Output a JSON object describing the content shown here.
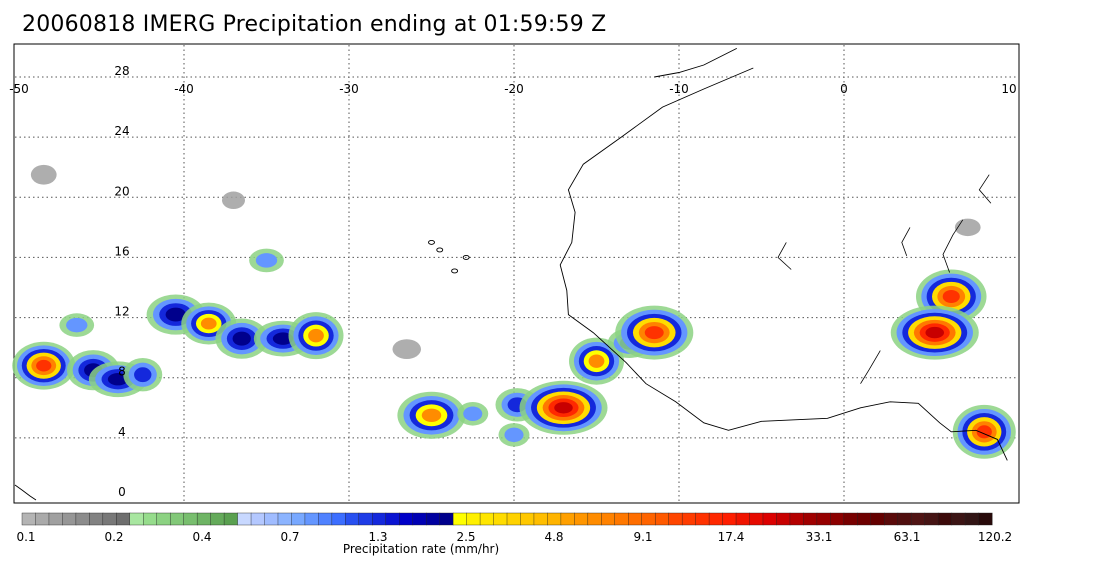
{
  "title": "20060818 IMERG Precipitation ending at 01:59:59 Z",
  "map": {
    "lon_range": [
      -50,
      10
    ],
    "lat_range": [
      -1,
      30
    ],
    "lon_ticks": [
      "-50",
      "-40",
      "-30",
      "-20",
      "-10",
      "0",
      "10"
    ],
    "lat_ticks": [
      "0",
      "4",
      "8",
      "12",
      "16",
      "20",
      "24",
      "28"
    ],
    "grid": true,
    "coastline_color": "#000000"
  },
  "legend": {
    "label": "Precipitation rate (mm/hr)",
    "tick_labels": [
      "0.1",
      "0.2",
      "0.4",
      "0.7",
      "1.3",
      "2.5",
      "4.8",
      "9.1",
      "17.4",
      "33.1",
      "63.1",
      "120.2"
    ],
    "colors": [
      "#b4b4b4",
      "#aaaaaa",
      "#a0a0a0",
      "#969696",
      "#8c8c8c",
      "#828282",
      "#787878",
      "#6e6e6e",
      "#a8e6a0",
      "#96dc8c",
      "#8cd282",
      "#82c878",
      "#78be6e",
      "#6eb464",
      "#64aa5a",
      "#5aa050",
      "#c8d8ff",
      "#b4c8ff",
      "#a0bcff",
      "#8cb4ff",
      "#78a8ff",
      "#6496ff",
      "#5082ff",
      "#3c6eff",
      "#2850f0",
      "#1e3ce6",
      "#1428dc",
      "#0a14d2",
      "#0000c8",
      "#0000b4",
      "#0000a0",
      "#00008c",
      "#ffff00",
      "#fff000",
      "#ffe600",
      "#ffdc00",
      "#ffd200",
      "#ffc800",
      "#ffbe00",
      "#ffb400",
      "#ffa000",
      "#ff9600",
      "#ff8c00",
      "#ff8200",
      "#ff7800",
      "#ff6e00",
      "#ff6400",
      "#ff5a00",
      "#ff4600",
      "#ff3c00",
      "#ff3200",
      "#ff2800",
      "#ff1e00",
      "#f01400",
      "#e60a00",
      "#dc0000",
      "#c80000",
      "#b40000",
      "#a00000",
      "#960000",
      "#8c0000",
      "#780000",
      "#6e0000",
      "#640000",
      "#5a0a0a",
      "#500f0f",
      "#501414",
      "#461414",
      "#3c0a0a",
      "#3c1414",
      "#321414",
      "#280a0a"
    ]
  },
  "precip_cells": [
    {
      "lon": -48.5,
      "lat": 8.8,
      "level": 5
    },
    {
      "lon": -45.5,
      "lat": 8.5,
      "level": 3
    },
    {
      "lon": -44.0,
      "lat": 7.9,
      "level": 3
    },
    {
      "lon": -42.5,
      "lat": 8.2,
      "level": 2
    },
    {
      "lon": -46.5,
      "lat": 11.5,
      "level": 1
    },
    {
      "lon": -40.5,
      "lat": 12.2,
      "level": 3
    },
    {
      "lon": -38.5,
      "lat": 11.6,
      "level": 4
    },
    {
      "lon": -36.5,
      "lat": 10.6,
      "level": 3
    },
    {
      "lon": -34.0,
      "lat": 10.6,
      "level": 3
    },
    {
      "lon": -32.0,
      "lat": 10.8,
      "level": 4
    },
    {
      "lon": -35.0,
      "lat": 15.8,
      "level": 1
    },
    {
      "lon": -25.0,
      "lat": 5.5,
      "level": 4
    },
    {
      "lon": -22.5,
      "lat": 5.6,
      "level": 1
    },
    {
      "lon": -19.8,
      "lat": 6.2,
      "level": 2
    },
    {
      "lon": -17.0,
      "lat": 6.0,
      "level": 6
    },
    {
      "lon": -15.0,
      "lat": 9.1,
      "level": 4
    },
    {
      "lon": -13.0,
      "lat": 10.3,
      "level": 2
    },
    {
      "lon": -11.5,
      "lat": 11.0,
      "level": 5
    },
    {
      "lon": -20.0,
      "lat": 4.2,
      "level": 1
    },
    {
      "lon": 6.5,
      "lat": 13.4,
      "level": 5
    },
    {
      "lon": 5.5,
      "lat": 11.0,
      "level": 6
    },
    {
      "lon": 8.5,
      "lat": 4.4,
      "level": 5
    },
    {
      "lon": 7.5,
      "lat": 18.0,
      "level": 0
    },
    {
      "lon": -26.5,
      "lat": 9.9,
      "level": 0
    },
    {
      "lon": -37.0,
      "lat": 19.8,
      "level": 0
    },
    {
      "lon": -48.5,
      "lat": 21.5,
      "level": 0
    }
  ]
}
